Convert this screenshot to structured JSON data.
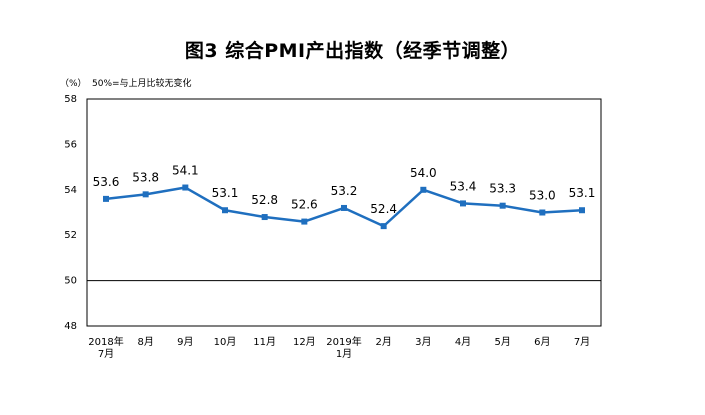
{
  "chart_data": {
    "type": "line",
    "title": "图3 综合PMI产出指数（经季节调整）",
    "y_unit": "（%）",
    "note": "50%=与上月比较无变化",
    "categories": [
      [
        "2018年",
        "7月"
      ],
      [
        "8月"
      ],
      [
        "9月"
      ],
      [
        "10月"
      ],
      [
        "11月"
      ],
      [
        "12月"
      ],
      [
        "2019年",
        "1月"
      ],
      [
        "2月"
      ],
      [
        "3月"
      ],
      [
        "4月"
      ],
      [
        "5月"
      ],
      [
        "6月"
      ],
      [
        "7月"
      ]
    ],
    "series": [
      {
        "values": [
          53.6,
          53.8,
          54.1,
          53.1,
          52.8,
          52.6,
          53.2,
          52.4,
          54.0,
          53.4,
          53.3,
          53.0,
          53.1
        ],
        "labels": [
          "53.6",
          "53.8",
          "54.1",
          "53.1",
          "52.8",
          "52.6",
          "53.2",
          "52.4",
          "54.0",
          "53.4",
          "53.3",
          "53.0",
          "53.1"
        ]
      }
    ],
    "ylim": [
      48,
      58
    ],
    "yticks": [
      48,
      50,
      52,
      54,
      56,
      58
    ],
    "reference_line": 50,
    "grid": false,
    "colors": {
      "line": "#1f6fbf",
      "marker": "#1f6fbf",
      "axis": "#000000"
    }
  }
}
